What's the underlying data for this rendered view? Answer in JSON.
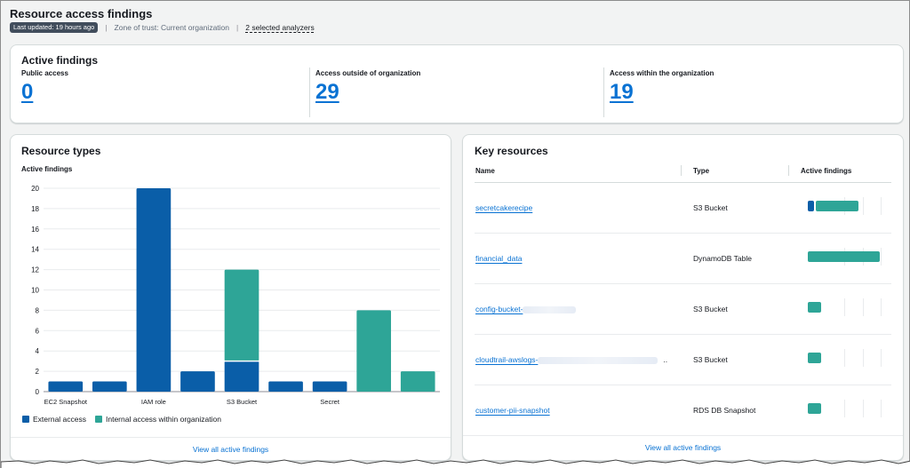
{
  "header": {
    "title": "Resource access findings",
    "last_updated": "Last updated: 19 hours ago",
    "zone_of_trust": "Zone of trust: Current organization",
    "analyzers": "2 selected analyzers"
  },
  "active_findings": {
    "title": "Active findings",
    "stats": [
      {
        "label": "Public access",
        "value": "0"
      },
      {
        "label": "Access outside of organization",
        "value": "29"
      },
      {
        "label": "Access within the organization",
        "value": "19"
      }
    ]
  },
  "resource_types": {
    "title": "Resource types",
    "subtitle": "Active findings",
    "legend": [
      {
        "label": "External access",
        "color": "#0a5ea8"
      },
      {
        "label": "Internal access within organization",
        "color": "#2ea597"
      }
    ],
    "footer_link": "View all active findings"
  },
  "chart_data": {
    "type": "bar",
    "stacked": true,
    "title": "Active findings",
    "ylim": [
      0,
      20
    ],
    "yticks": [
      0,
      2,
      4,
      6,
      8,
      10,
      12,
      14,
      16,
      18,
      20
    ],
    "grid": true,
    "categories": [
      "EC2 Snapshot",
      "",
      "IAM role",
      "",
      "S3 Bucket",
      "",
      "Secret",
      "",
      ""
    ],
    "series": [
      {
        "name": "External access",
        "color": "#0a5ea8",
        "values": [
          1,
          1,
          20,
          2,
          3,
          1,
          1,
          0,
          0
        ]
      },
      {
        "name": "Internal access within organization",
        "color": "#2ea597",
        "values": [
          0,
          0,
          0,
          0,
          9,
          0,
          0,
          8,
          2
        ]
      }
    ]
  },
  "key_resources": {
    "title": "Key resources",
    "columns": [
      "Name",
      "Type",
      "Active findings"
    ],
    "rows": [
      {
        "name": "secretcakerecipe",
        "type": "S3 Bucket",
        "external": 1,
        "internal": 6
      },
      {
        "name": "financial_data",
        "type": "DynamoDB Table",
        "external": 0,
        "internal": 10
      },
      {
        "name": "config-bucket-",
        "type": "S3 Bucket",
        "external": 0,
        "internal": 2
      },
      {
        "name": "cloudtrail-awslogs-",
        "suffix": "..",
        "type": "S3 Bucket",
        "external": 0,
        "internal": 2
      },
      {
        "name": "customer-pii-snapshot",
        "type": "RDS DB Snapshot",
        "external": 0,
        "internal": 2
      }
    ],
    "bar_max": 10,
    "footer_link": "View all active findings"
  }
}
